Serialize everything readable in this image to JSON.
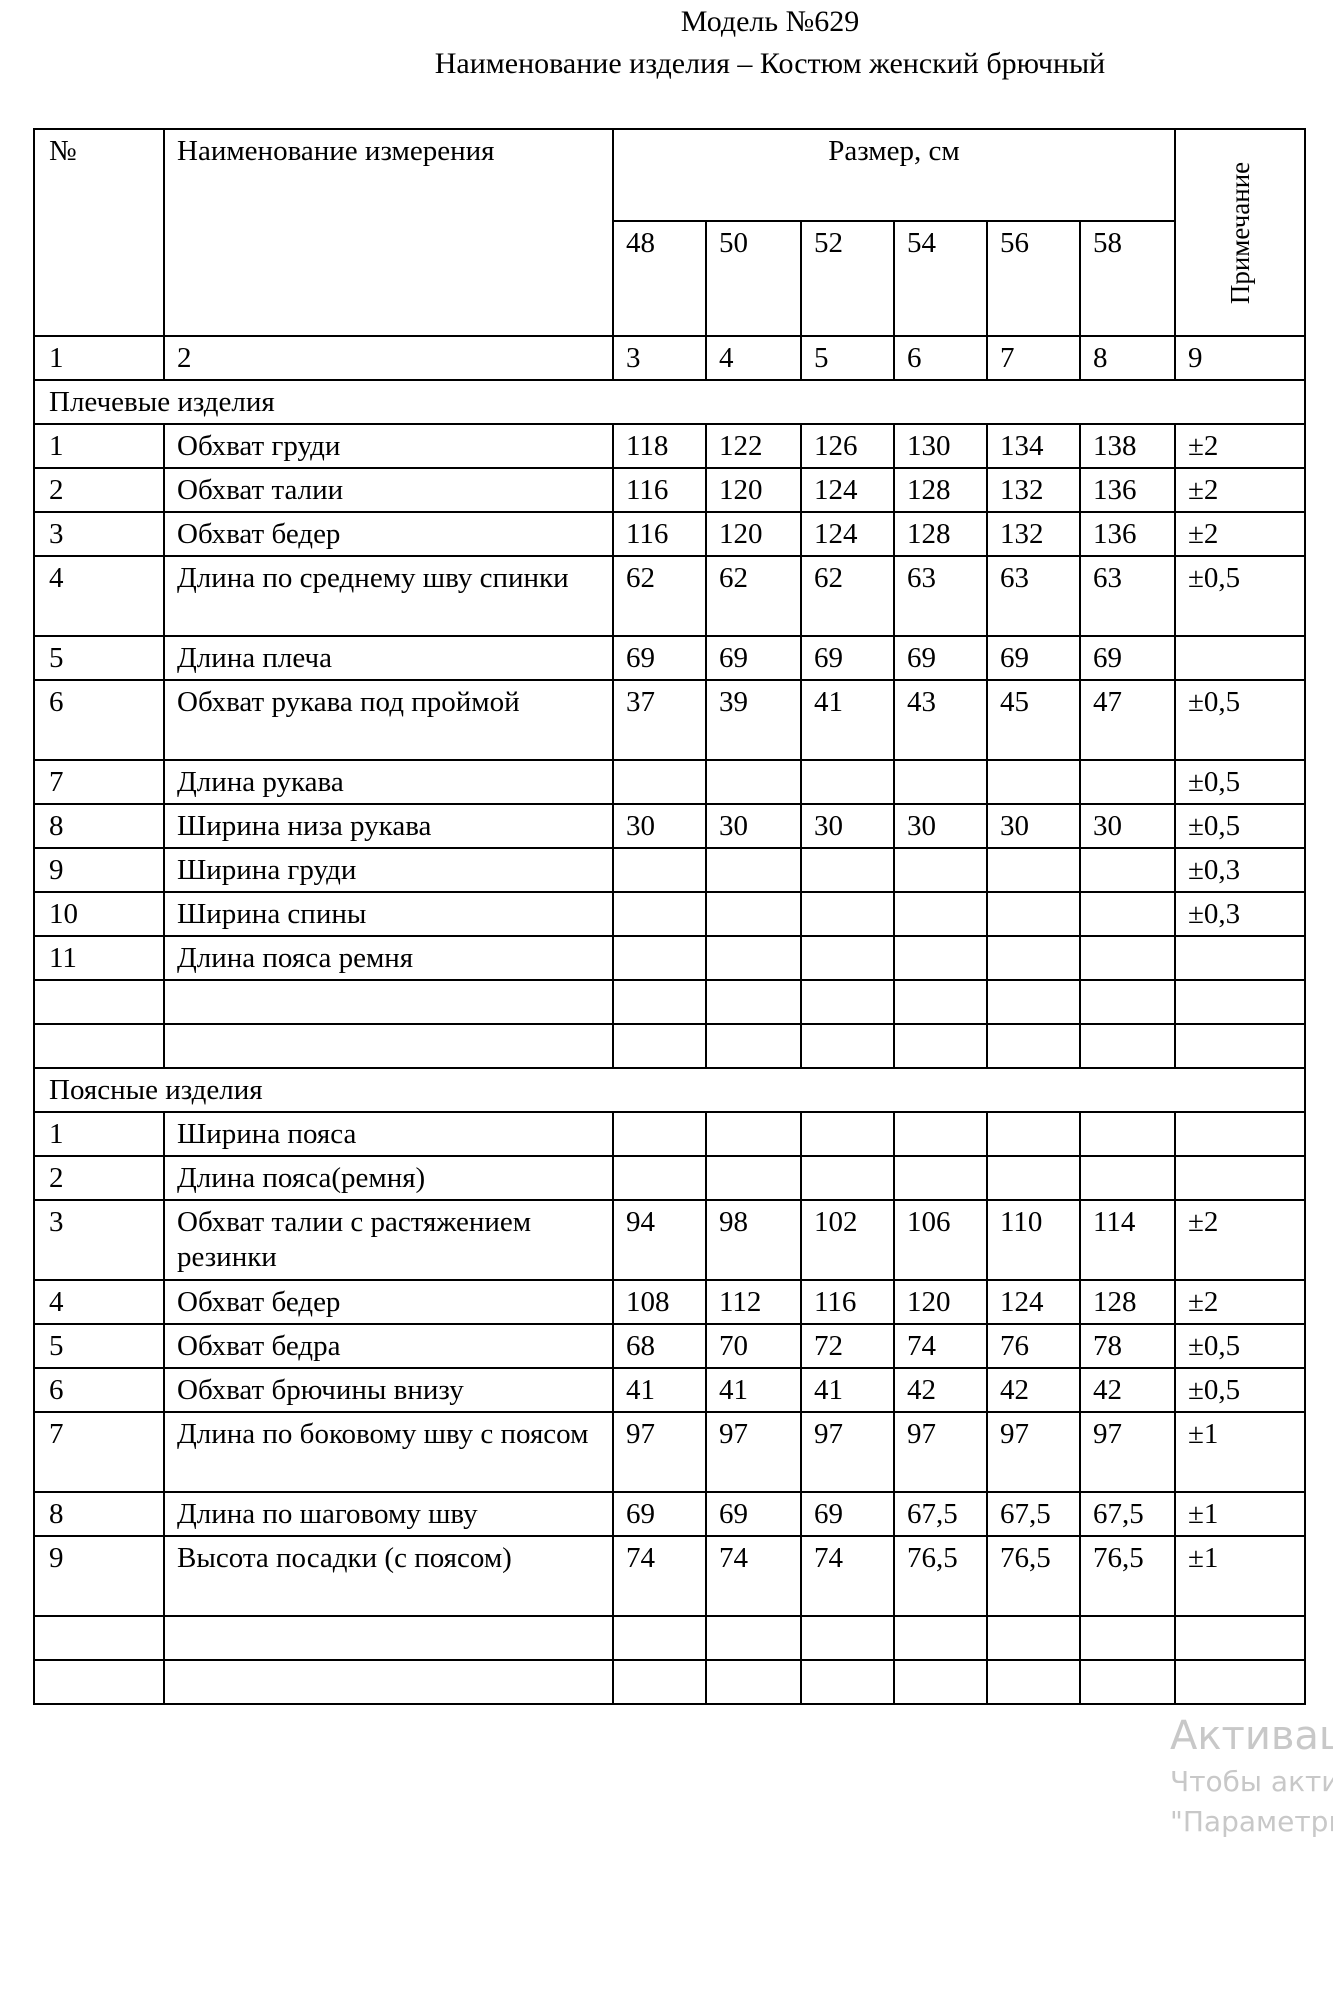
{
  "header": {
    "model": "Модель №629",
    "product": "Наименование изделия – Костюм женский брючный"
  },
  "table": {
    "col_no": "№",
    "col_name": "Наименование измерения",
    "col_size": "Размер, см",
    "col_note": "Примечание",
    "sizes": [
      "48",
      "50",
      "52",
      "54",
      "56",
      "58"
    ],
    "col_index": [
      "1",
      "2",
      "3",
      "4",
      "5",
      "6",
      "7",
      "8",
      "9"
    ],
    "sections": [
      {
        "title": "Плечевые изделия",
        "rows": [
          {
            "n": "1",
            "name": "Обхват груди",
            "v": [
              "118",
              "122",
              "126",
              "130",
              "134",
              "138"
            ],
            "note": "±2"
          },
          {
            "n": "2",
            "name": "Обхват талии",
            "v": [
              "116",
              "120",
              "124",
              "128",
              "132",
              "136"
            ],
            "note": "±2"
          },
          {
            "n": "3",
            "name": "Обхват бедер",
            "v": [
              "116",
              "120",
              "124",
              "128",
              "132",
              "136"
            ],
            "note": "±2"
          },
          {
            "n": "4",
            "name": "Длина по среднему шву спинки",
            "v": [
              "62",
              "62",
              "62",
              "63",
              "63",
              "63"
            ],
            "note": "±0,5",
            "tall": true
          },
          {
            "n": "5",
            "name": "Длина плеча",
            "v": [
              "69",
              "69",
              "69",
              "69",
              "69",
              "69"
            ],
            "note": ""
          },
          {
            "n": "6",
            "name": "Обхват рукава под проймой",
            "v": [
              "37",
              "39",
              "41",
              "43",
              "45",
              "47"
            ],
            "note": "±0,5",
            "tall": true
          },
          {
            "n": "7",
            "name": "Длина рукава",
            "v": [
              "",
              "",
              "",
              "",
              "",
              ""
            ],
            "note": "±0,5"
          },
          {
            "n": "8",
            "name": "Ширина низа рукава",
            "v": [
              "30",
              "30",
              "30",
              "30",
              "30",
              "30"
            ],
            "note": "±0,5"
          },
          {
            "n": "9",
            "name": "Ширина груди",
            "v": [
              "",
              "",
              "",
              "",
              "",
              ""
            ],
            "note": "±0,3"
          },
          {
            "n": "10",
            "name": "Ширина спины",
            "v": [
              "",
              "",
              "",
              "",
              "",
              ""
            ],
            "note": "±0,3"
          },
          {
            "n": "11",
            "name": "Длина пояса ремня",
            "v": [
              "",
              "",
              "",
              "",
              "",
              ""
            ],
            "note": ""
          },
          {
            "n": "",
            "name": "",
            "v": [
              "",
              "",
              "",
              "",
              "",
              ""
            ],
            "note": ""
          },
          {
            "n": "",
            "name": "",
            "v": [
              "",
              "",
              "",
              "",
              "",
              ""
            ],
            "note": ""
          }
        ]
      },
      {
        "title": "Поясные изделия",
        "rows": [
          {
            "n": "1",
            "name": "Ширина пояса",
            "v": [
              "",
              "",
              "",
              "",
              "",
              ""
            ],
            "note": ""
          },
          {
            "n": "2",
            "name": "Длина пояса(ремня)",
            "v": [
              "",
              "",
              "",
              "",
              "",
              ""
            ],
            "note": ""
          },
          {
            "n": "3",
            "name": "Обхват талии с растяжением резинки",
            "v": [
              "94",
              "98",
              "102",
              "106",
              "110",
              "114"
            ],
            "note": "±2",
            "tall": true
          },
          {
            "n": "4",
            "name": "Обхват бедер",
            "v": [
              "108",
              "112",
              "116",
              "120",
              "124",
              "128"
            ],
            "note": "±2"
          },
          {
            "n": "5",
            "name": "Обхват бедра",
            "v": [
              "68",
              "70",
              "72",
              "74",
              "76",
              "78"
            ],
            "note": "±0,5"
          },
          {
            "n": "6",
            "name": "Обхват брючины внизу",
            "v": [
              "41",
              "41",
              "41",
              "42",
              "42",
              "42"
            ],
            "note": "±0,5"
          },
          {
            "n": "7",
            "name": "Длина по боковому шву с поясом",
            "v": [
              "97",
              "97",
              "97",
              "97",
              "97",
              "97"
            ],
            "note": "±1",
            "tall": true
          },
          {
            "n": "8",
            "name": "Длина по шаговому шву",
            "v": [
              "69",
              "69",
              "69",
              "67,5",
              "67,5",
              "67,5"
            ],
            "note": "±1"
          },
          {
            "n": "9",
            "name": "Высота посадки (с поясом)",
            "v": [
              "74",
              "74",
              "74",
              "76,5",
              "76,5",
              "76,5"
            ],
            "note": "±1",
            "tall": true
          },
          {
            "n": "",
            "name": "",
            "v": [
              "",
              "",
              "",
              "",
              "",
              ""
            ],
            "note": ""
          },
          {
            "n": "",
            "name": "",
            "v": [
              "",
              "",
              "",
              "",
              "",
              ""
            ],
            "note": ""
          }
        ]
      }
    ]
  },
  "watermark": {
    "line1": "Активаци",
    "line2": "Чтобы активи",
    "line3": "\"Параметры"
  }
}
